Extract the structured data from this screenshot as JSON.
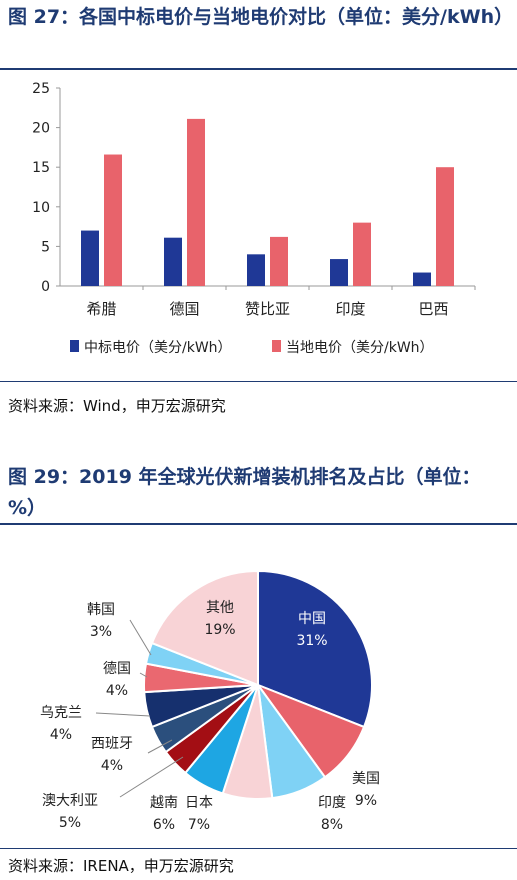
{
  "figure1": {
    "title": "图 27：各国中标电价与当地电价对比（单位：美分/kWh）",
    "source": "资料来源：Wind，申万宏源研究"
  },
  "figure2": {
    "title": "图 29：2019 年全球光伏新增装机排名及占比（单位：%）",
    "source": "资料来源：IRENA，申万宏源研究"
  },
  "chart_data": [
    {
      "type": "bar",
      "categories": [
        "希腊",
        "德国",
        "赞比亚",
        "印度",
        "巴西"
      ],
      "series": [
        {
          "name": "中标电价（美分/kWh）",
          "values": [
            7.0,
            6.1,
            4.0,
            3.4,
            1.7
          ],
          "color": "#1f3896"
        },
        {
          "name": "当地电价（美分/kWh）",
          "values": [
            16.6,
            21.1,
            6.2,
            8.0,
            15.0
          ],
          "color": "#e8636b"
        }
      ],
      "ylim": [
        0,
        25
      ],
      "yticks": [
        0,
        5,
        10,
        15,
        20,
        25
      ],
      "legend": "bottom",
      "grid": false
    },
    {
      "type": "pie",
      "slices": [
        {
          "label": "中国",
          "pct": "31%",
          "value": 31,
          "color": "#1f3896"
        },
        {
          "label": "美国",
          "pct": "9%",
          "value": 9,
          "color": "#e8636b"
        },
        {
          "label": "印度",
          "pct": "8%",
          "value": 8,
          "color": "#7fd2f5"
        },
        {
          "label": "日本",
          "pct": "7%",
          "value": 7,
          "color": "#f8d3d6"
        },
        {
          "label": "越南",
          "pct": "6%",
          "value": 6,
          "color": "#1ea6e3"
        },
        {
          "label": "西班牙",
          "pct": "4%",
          "value": 4,
          "color": "#a30e14"
        },
        {
          "label": "乌克兰",
          "pct": "4%",
          "value": 4,
          "color": "#2b4f7d"
        },
        {
          "label": "澳大利亚",
          "pct": "5%",
          "value": 5,
          "color": "#16306e"
        },
        {
          "label": "德国",
          "pct": "4%",
          "value": 4,
          "color": "#ea6870"
        },
        {
          "label": "韩国",
          "pct": "3%",
          "value": 3,
          "color": "#7fd2f5"
        },
        {
          "label": "其他",
          "pct": "19%",
          "value": 19,
          "color": "#f8d3d6"
        }
      ]
    }
  ]
}
